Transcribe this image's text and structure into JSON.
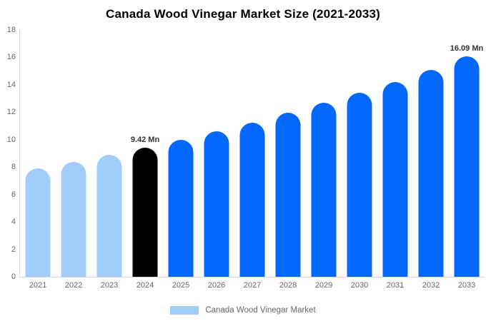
{
  "title": "Canada Wood Vinegar Market Size (2021-2033)",
  "legend": {
    "label": "Canada Wood Vinegar Market"
  },
  "colors": {
    "historical": "#a2cdfa",
    "base_year": "#000000",
    "forecast": "#0568fc",
    "axis_line": "#d9d9d9",
    "tick_text": "#666666",
    "annotation_text": "#333333",
    "title_text": "#000000",
    "background": "#ffffff"
  },
  "chart_data": {
    "type": "bar",
    "title": "Canada Wood Vinegar Market Size (2021-2033)",
    "unit": "Mn",
    "categories": [
      "2021",
      "2022",
      "2023",
      "2024",
      "2025",
      "2026",
      "2027",
      "2028",
      "2029",
      "2030",
      "2031",
      "2032",
      "2033"
    ],
    "values": [
      7.9,
      8.36,
      8.88,
      9.42,
      10.0,
      10.61,
      11.26,
      11.95,
      12.68,
      13.42,
      14.2,
      15.1,
      16.09
    ],
    "bar_roles": [
      "historical",
      "historical",
      "historical",
      "base_year",
      "forecast",
      "forecast",
      "forecast",
      "forecast",
      "forecast",
      "forecast",
      "forecast",
      "forecast",
      "forecast"
    ],
    "annotations": [
      {
        "index": 3,
        "category": "2024",
        "text": "9.42 Mn"
      },
      {
        "index": 12,
        "category": "2033",
        "text": "16.09 Mn"
      }
    ],
    "xlabel": "",
    "ylabel": "",
    "ylim": [
      0,
      18
    ],
    "yticks": [
      0,
      2,
      4,
      6,
      8,
      10,
      12,
      14,
      16,
      18
    ],
    "grid": false,
    "legend_position": "bottom",
    "legend_entries": [
      "Canada Wood Vinegar Market"
    ]
  }
}
